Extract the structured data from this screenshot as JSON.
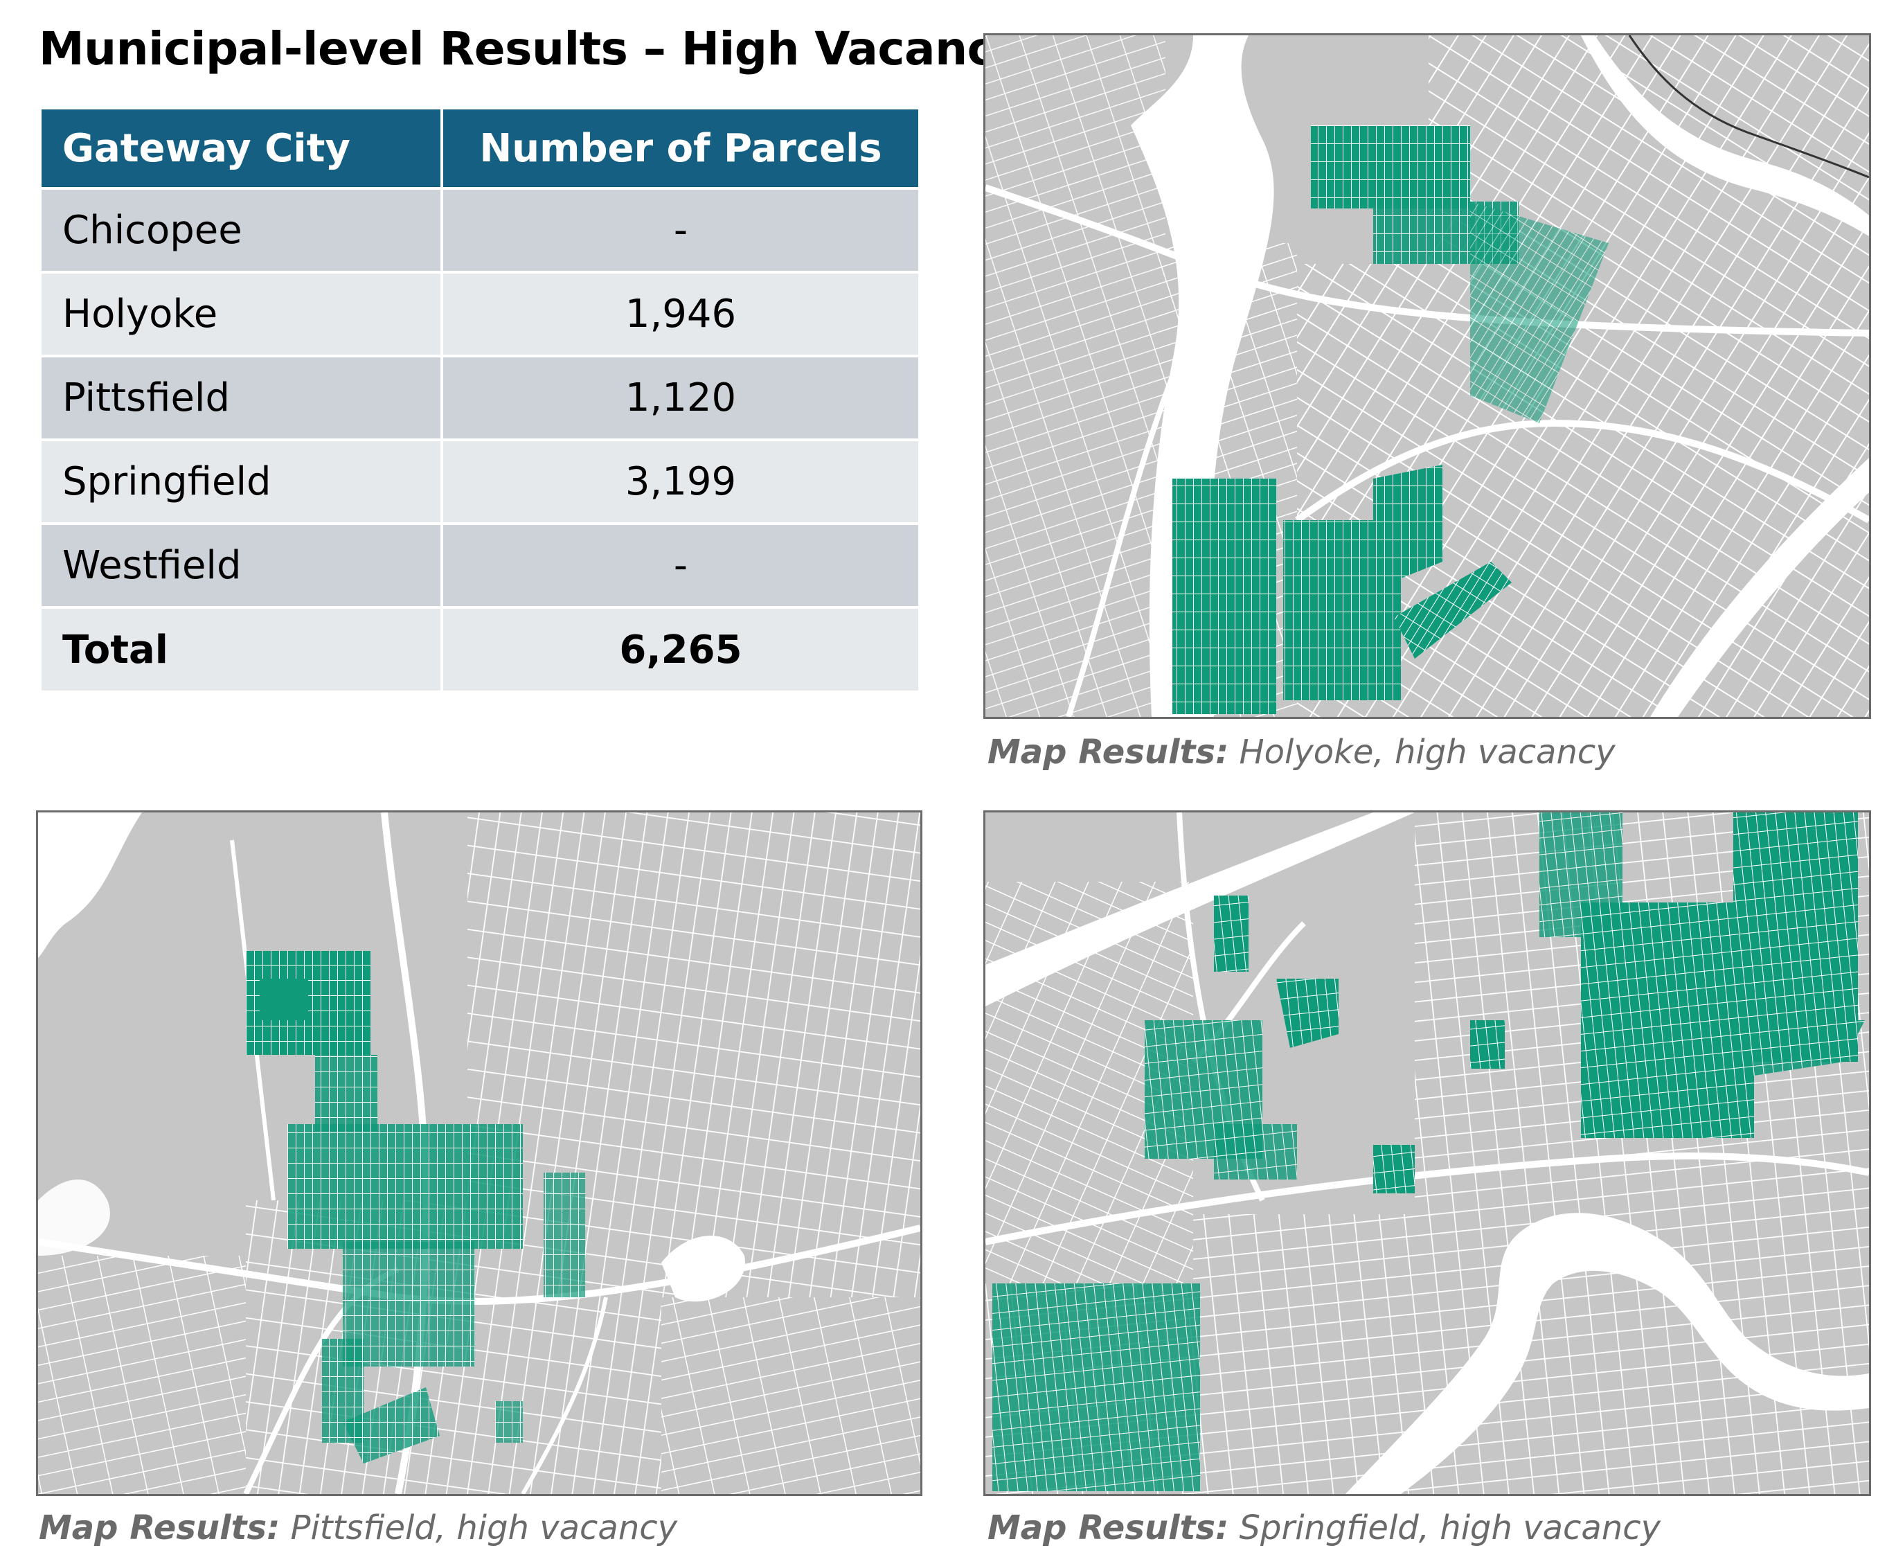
{
  "title": "Municipal-level Results – High Vacancy",
  "table": {
    "headers": [
      "Gateway City",
      "Number of Parcels"
    ],
    "rows": [
      {
        "city": "Chicopee",
        "parcels": "-"
      },
      {
        "city": "Holyoke",
        "parcels": "1,946"
      },
      {
        "city": "Pittsfield",
        "parcels": "1,120"
      },
      {
        "city": "Springfield",
        "parcels": "3,199"
      },
      {
        "city": "Westfield",
        "parcels": "-"
      }
    ],
    "total": {
      "label": "Total",
      "parcels": "6,265"
    }
  },
  "maps": [
    {
      "caption_lead": "Map Results:",
      "caption_text": " Holyoke, high vacancy"
    },
    {
      "caption_lead": "Map Results:",
      "caption_text": " Pittsfield, high vacancy"
    },
    {
      "caption_lead": "Map Results:",
      "caption_text": " Springfield, high vacancy"
    }
  ],
  "colors": {
    "header_bg": "#155f82",
    "row_dark": "#cdd2d9",
    "row_light": "#e6e9ec",
    "land": "#c6c6c6",
    "streets": "#ffffff",
    "vacant_parcels": "#0f9a7a"
  }
}
